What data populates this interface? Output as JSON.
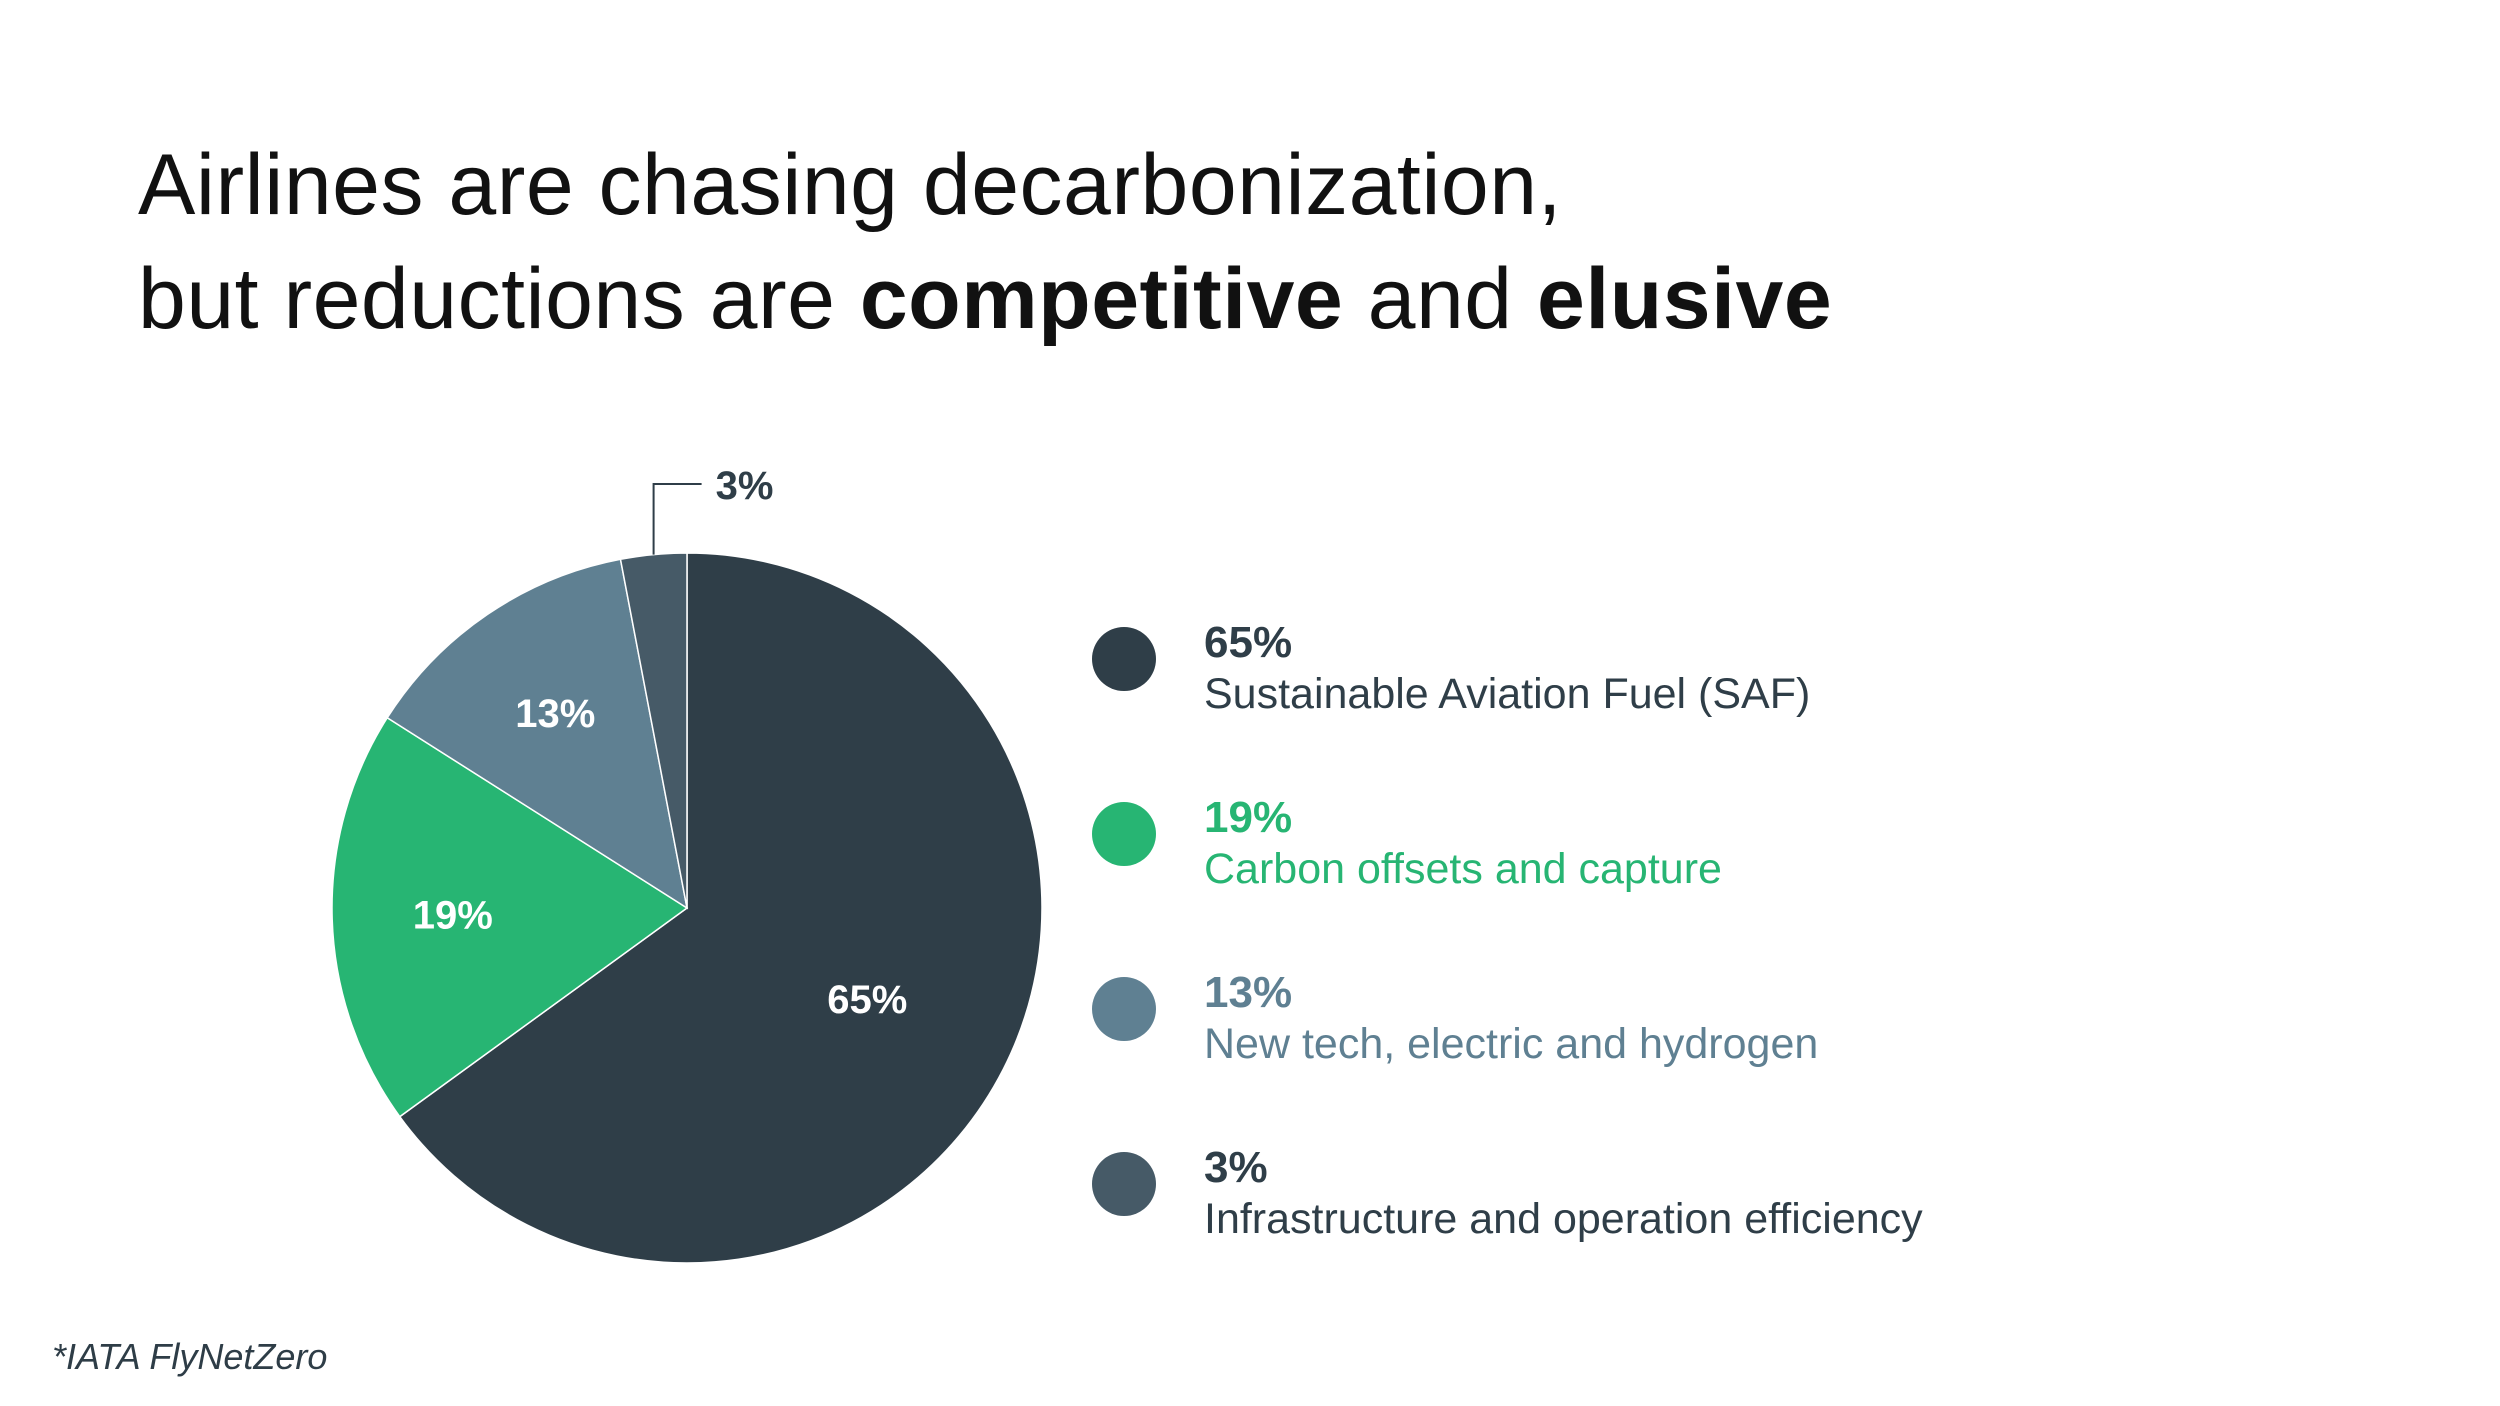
{
  "title": {
    "line1": "Airlines are chasing decarbonization,",
    "line2_pre": "but reductions are ",
    "line2_bold1": "competitive",
    "line2_mid": " and ",
    "line2_bold2": "elusive"
  },
  "footnote": "*IATA FlyNetZero",
  "chart_data": {
    "type": "pie",
    "title": "",
    "slices": [
      {
        "value": 65,
        "label": "65%",
        "name": "Sustainable Aviation Fuel (SAF)",
        "color": "#2f3e48",
        "label_color": "#2f3e48"
      },
      {
        "value": 19,
        "label": "19%",
        "name": "Carbon offsets and capture",
        "color": "#27b573",
        "label_color": "#27b573"
      },
      {
        "value": 13,
        "label": "13%",
        "name": "New tech, electric and hydrogen",
        "color": "#5f8092",
        "label_color": "#5f8092"
      },
      {
        "value": 3,
        "label": "3%",
        "name": "Infrastructure and operation efficiency",
        "color": "#465a67",
        "label_color": "#2f3e48"
      }
    ],
    "start_angle": "12 o'clock",
    "direction": "clockwise",
    "legend_placement": "right"
  }
}
